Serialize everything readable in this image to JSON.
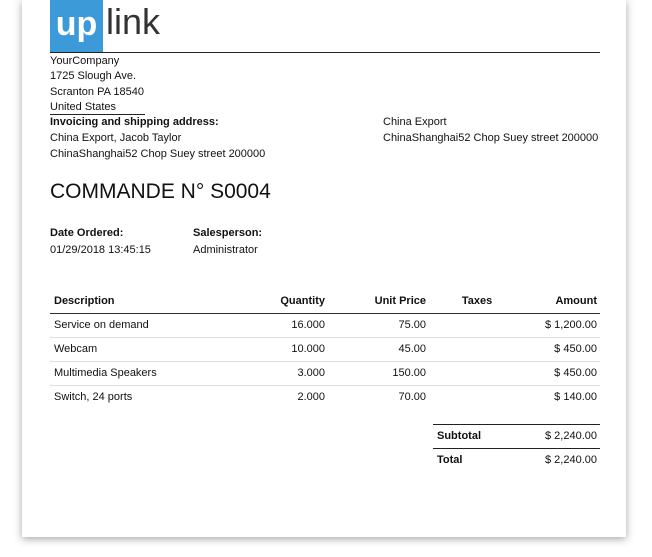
{
  "logo": {
    "mark": "up",
    "word": "link"
  },
  "company": [
    "YourCompany",
    "1725 Slough Ave.",
    "Scranton PA 18540",
    "United States"
  ],
  "invoicing": {
    "label": "Invoicing and shipping address:",
    "lines": [
      "China Export, Jacob Taylor",
      "ChinaShanghai52 Chop Suey street 200000"
    ]
  },
  "partner": [
    "China Export",
    "ChinaShanghai52 Chop Suey street 200000"
  ],
  "title": "COMMANDE N° S0004",
  "info": [
    {
      "label": "Date Ordered:",
      "value": "01/29/2018 13:45:15"
    },
    {
      "label": "Salesperson:",
      "value": "Administrator"
    }
  ],
  "table": {
    "header": [
      "Description",
      "Quantity",
      "Unit Price",
      "Taxes",
      "Amount"
    ],
    "rows": [
      [
        "Service on demand",
        "16.000",
        "75.00",
        "",
        "$ 1,200.00"
      ],
      [
        "Webcam",
        "10.000",
        "45.00",
        "",
        "$ 450.00"
      ],
      [
        "Multimedia Speakers",
        "3.000",
        "150.00",
        "",
        "$ 450.00"
      ],
      [
        "Switch, 24 ports",
        "2.000",
        "70.00",
        "",
        "$ 140.00"
      ]
    ]
  },
  "totals": [
    {
      "label": "Subtotal",
      "value": "$ 2,240.00"
    },
    {
      "label": "Total",
      "value": "$ 2,240.00"
    }
  ]
}
